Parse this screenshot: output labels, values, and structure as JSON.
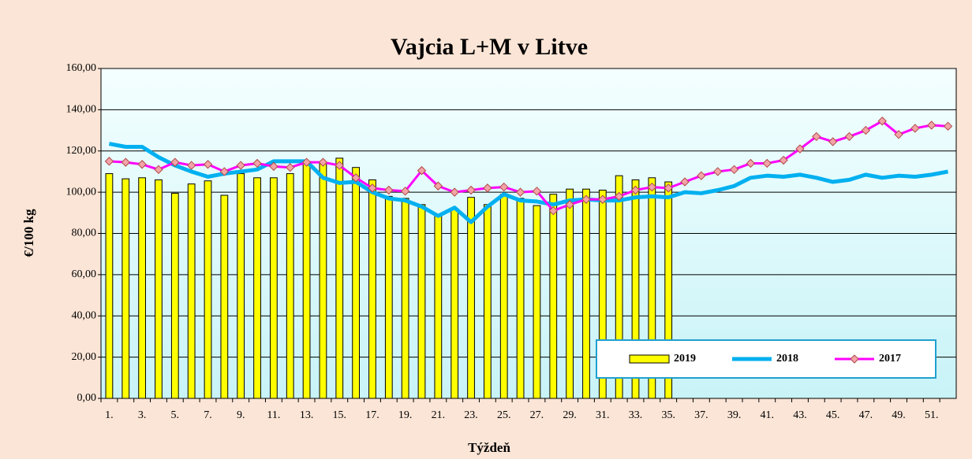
{
  "chart_data": {
    "type": "bar",
    "title": "Vajcia  L+M v Litve",
    "x_label": "Týždeň",
    "y_label": "€/100 kg",
    "categories": [
      "1.",
      null,
      "3.",
      null,
      "5.",
      null,
      "7.",
      null,
      "9.",
      null,
      "11.",
      null,
      "13.",
      null,
      "15.",
      null,
      "17.",
      null,
      "19.",
      null,
      "21.",
      null,
      "23.",
      null,
      "25.",
      null,
      "27.",
      null,
      "29.",
      null,
      "31.",
      null,
      "33.",
      null,
      "35.",
      null,
      "37.",
      null,
      "39.",
      null,
      "41.",
      null,
      "43.",
      null,
      "45.",
      null,
      "47.",
      null,
      "49.",
      null,
      "51.",
      null
    ],
    "ylim": [
      0,
      160
    ],
    "yticks": [
      {
        "value": 0,
        "label": "0,00"
      },
      {
        "value": 20,
        "label": "20,00"
      },
      {
        "value": 40,
        "label": "40,00"
      },
      {
        "value": 60,
        "label": "60,00"
      },
      {
        "value": 80,
        "label": "80,00"
      },
      {
        "value": 100,
        "label": "100,00"
      },
      {
        "value": 120,
        "label": "120,00"
      },
      {
        "value": 140,
        "label": "140,00"
      },
      {
        "value": 160,
        "label": "160,00"
      }
    ],
    "grid": true,
    "legend": "lower right",
    "series": [
      {
        "name": "2019",
        "type": "bar",
        "color": "#ffff00",
        "values": [
          109,
          106.5,
          107,
          106,
          99.5,
          104,
          105.5,
          98.5,
          109,
          107,
          107,
          109,
          114,
          114.5,
          116.5,
          112,
          106,
          98,
          97,
          94,
          89,
          92,
          97.5,
          94,
          99,
          97,
          93.5,
          99,
          101.5,
          101.5,
          101,
          108,
          106,
          107,
          105,
          null,
          null,
          null,
          null,
          null,
          null,
          null,
          null,
          null,
          null,
          null,
          null,
          null,
          null,
          null,
          null,
          null
        ]
      },
      {
        "name": "2018",
        "type": "line",
        "color": "#00b0f0",
        "values": [
          123.5,
          122,
          122,
          117,
          113,
          110,
          107.5,
          109,
          110,
          111,
          115,
          115,
          115,
          107,
          104.5,
          105,
          100,
          97,
          96,
          93,
          88.5,
          92.5,
          85.5,
          93,
          99,
          96,
          95.5,
          94,
          96,
          96.5,
          96,
          96,
          97.5,
          98,
          97.5,
          100,
          99.5,
          101,
          103,
          107,
          108,
          107.5,
          108.5,
          107,
          105,
          106,
          108.5,
          107,
          108,
          107.5,
          108.5,
          110
        ]
      },
      {
        "name": "2017",
        "type": "line",
        "color": "#ff00ff",
        "marker": "diamond",
        "values": [
          115,
          114.5,
          113.5,
          111,
          114.5,
          113,
          113.5,
          110,
          113,
          114,
          112.5,
          112,
          114.5,
          114.5,
          113,
          107,
          102,
          101,
          100.5,
          110.5,
          103,
          100,
          101,
          102,
          102.5,
          100,
          100.5,
          91,
          94,
          96.5,
          96.5,
          98,
          101,
          102.5,
          102,
          105,
          108,
          110,
          111,
          114,
          114,
          115.5,
          121,
          127,
          124.5,
          127,
          130,
          134.5,
          128,
          131,
          132.5,
          132
        ]
      }
    ]
  }
}
